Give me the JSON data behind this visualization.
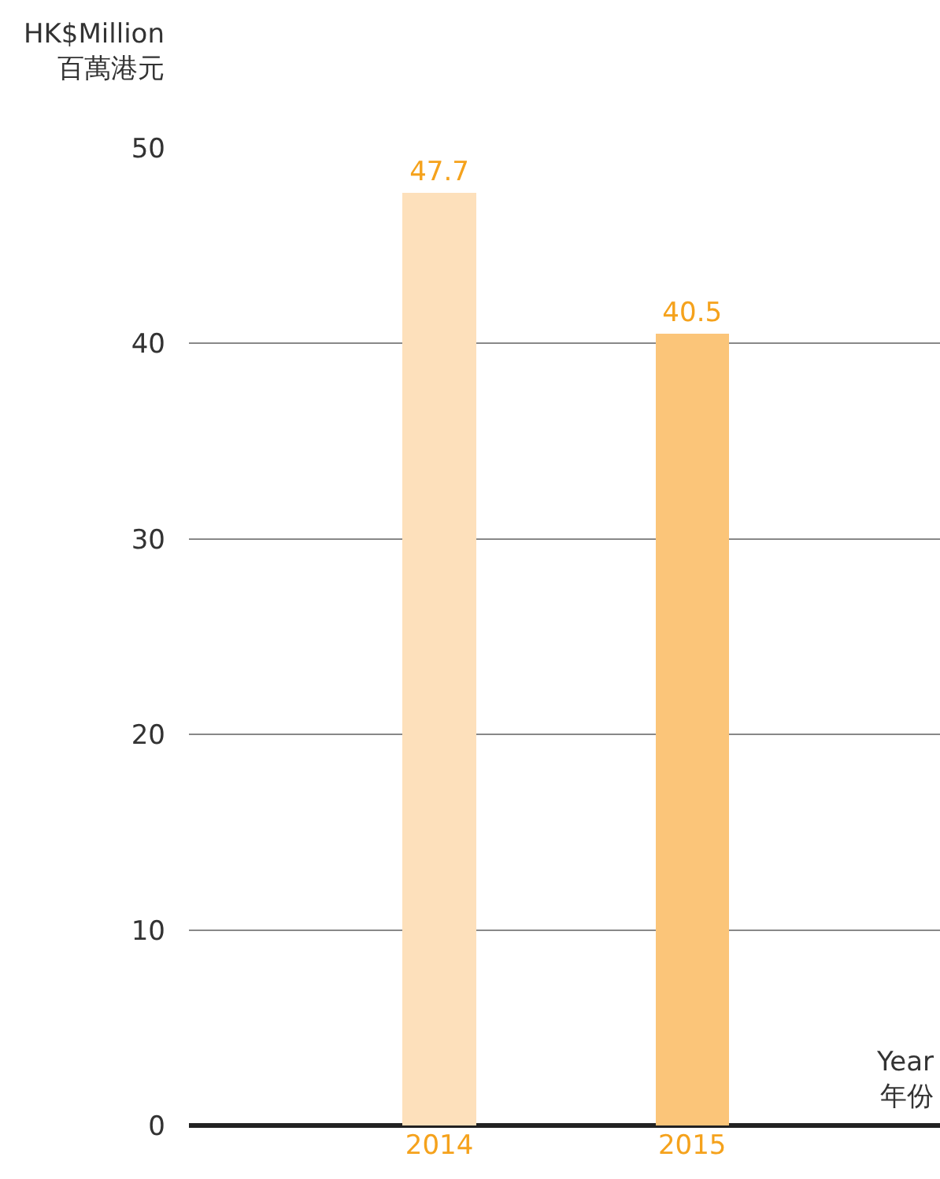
{
  "chart_data": {
    "type": "bar",
    "categories": [
      "2014",
      "2015"
    ],
    "values": [
      47.7,
      40.5
    ],
    "colors": [
      "#fde0bb",
      "#fbc579"
    ],
    "ylabel": "HK$Million\n百萬港元",
    "xlabel": "Year\n年份",
    "ylim": [
      0,
      50
    ],
    "yticks": [
      0,
      10,
      20,
      30,
      40,
      50
    ],
    "grid": "y",
    "data_labels": true
  }
}
